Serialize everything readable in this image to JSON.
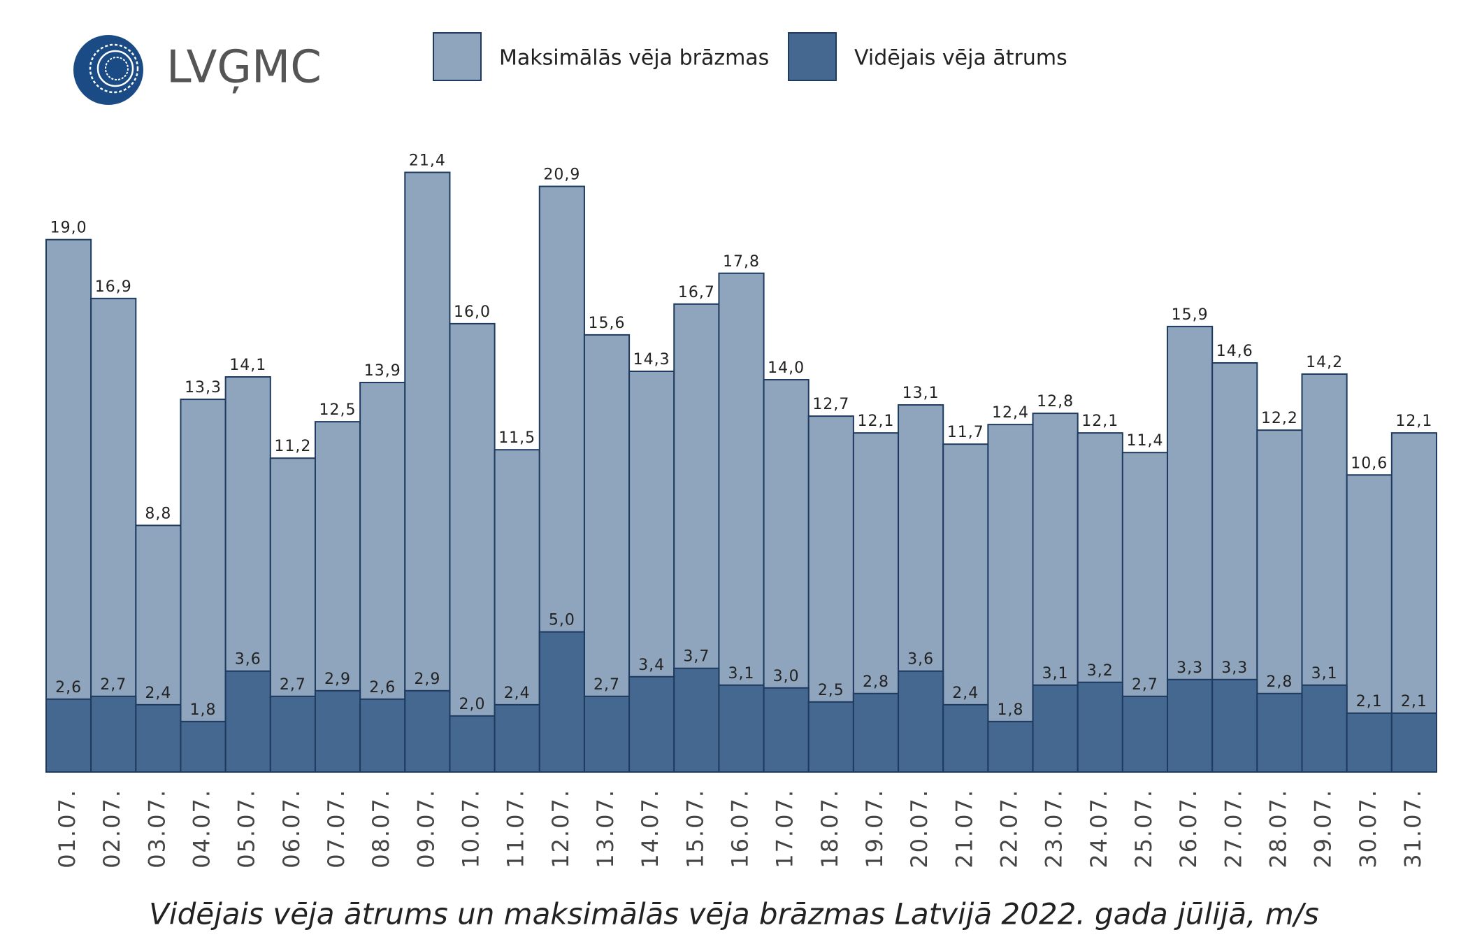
{
  "logo": "LVĢMC",
  "chart_data": {
    "type": "bar",
    "title": "Vidējais vēja ātrums un maksimālās vēja brāzmas Latvijā 2022. gada jūlijā, m/s",
    "categories": [
      "01.07.",
      "02.07.",
      "03.07.",
      "04.07.",
      "05.07.",
      "06.07.",
      "07.07.",
      "08.07.",
      "09.07.",
      "10.07.",
      "11.07.",
      "12.07.",
      "13.07.",
      "14.07.",
      "15.07.",
      "16.07.",
      "17.07.",
      "18.07.",
      "19.07.",
      "20.07.",
      "21.07.",
      "22.07.",
      "23.07.",
      "24.07.",
      "25.07.",
      "26.07.",
      "27.07.",
      "28.07.",
      "29.07.",
      "30.07.",
      "31.07."
    ],
    "series": [
      {
        "name": "Maksimālās vēja brāzmas",
        "color": "#8fa5bd",
        "values": [
          19.0,
          16.9,
          8.8,
          13.3,
          14.1,
          11.2,
          12.5,
          13.9,
          21.4,
          16.0,
          11.5,
          20.9,
          15.6,
          14.3,
          16.7,
          17.8,
          14.0,
          12.7,
          12.1,
          13.1,
          11.7,
          12.4,
          12.8,
          12.1,
          11.4,
          15.9,
          14.6,
          12.2,
          14.2,
          10.6,
          12.1
        ],
        "value_labels": [
          "19,0",
          "16,9",
          "8,8",
          "13,3",
          "14,1",
          "11,2",
          "12,5",
          "13,9",
          "21,4",
          "16,0",
          "11,5",
          "20,9",
          "15,6",
          "14,3",
          "16,7",
          "17,8",
          "14,0",
          "12,7",
          "12,1",
          "13,1",
          "11,7",
          "12,4",
          "12,8",
          "12,1",
          "11,4",
          "15,9",
          "14,6",
          "12,2",
          "14,2",
          "10,6",
          "12,1"
        ]
      },
      {
        "name": "Vidējais vēja ātrums",
        "color": "#44688f",
        "values": [
          2.6,
          2.7,
          2.4,
          1.8,
          3.6,
          2.7,
          2.9,
          2.6,
          2.9,
          2.0,
          2.4,
          5.0,
          2.7,
          3.4,
          3.7,
          3.1,
          3.0,
          2.5,
          2.8,
          3.6,
          2.4,
          1.8,
          3.1,
          3.2,
          2.7,
          3.3,
          3.3,
          2.8,
          3.1,
          2.1,
          2.1
        ],
        "value_labels": [
          "2,6",
          "2,7",
          "2,4",
          "1,8",
          "3,6",
          "2,7",
          "2,9",
          "2,6",
          "2,9",
          "2,0",
          "2,4",
          "5,0",
          "2,7",
          "3,4",
          "3,7",
          "3,1",
          "3,0",
          "2,5",
          "2,8",
          "3,6",
          "2,4",
          "1,8",
          "3,1",
          "3,2",
          "2,7",
          "3,3",
          "3,3",
          "2,8",
          "3,1",
          "2,1",
          "2,1"
        ]
      }
    ]
  }
}
